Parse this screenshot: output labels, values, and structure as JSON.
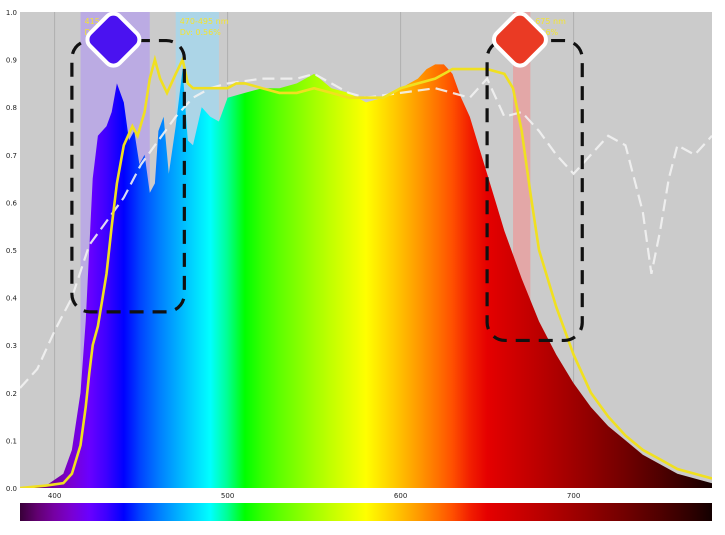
{
  "chart_data": {
    "type": "area",
    "title": "",
    "xlabel": "",
    "ylabel": "",
    "xlim": [
      380,
      780
    ],
    "ylim": [
      0,
      1.0
    ],
    "grid": true,
    "x_ticks": [
      400,
      500,
      600,
      700
    ],
    "y_ticks": [
      0,
      0.1,
      0.2,
      0.3,
      0.4,
      0.5,
      0.6,
      0.7,
      0.8,
      0.9,
      1.0
    ],
    "series": [
      {
        "style": "filled spectrum",
        "x": [
          380,
          395,
          405,
          410,
          415,
          418,
          420,
          422,
          425,
          430,
          433,
          436,
          440,
          443,
          446,
          449,
          452,
          455,
          458,
          460,
          463,
          466,
          470,
          474,
          477,
          480,
          485,
          490,
          495,
          500,
          510,
          520,
          530,
          540,
          550,
          560,
          570,
          580,
          590,
          600,
          610,
          615,
          620,
          625,
          630,
          635,
          640,
          645,
          650,
          655,
          660,
          670,
          680,
          690,
          700,
          710,
          720,
          730,
          740,
          750,
          760,
          770,
          780
        ],
        "values": [
          0.0,
          0.005,
          0.03,
          0.08,
          0.2,
          0.35,
          0.5,
          0.65,
          0.74,
          0.76,
          0.79,
          0.85,
          0.81,
          0.73,
          0.75,
          0.68,
          0.7,
          0.62,
          0.64,
          0.75,
          0.78,
          0.66,
          0.76,
          0.88,
          0.73,
          0.72,
          0.8,
          0.78,
          0.77,
          0.82,
          0.83,
          0.84,
          0.84,
          0.85,
          0.87,
          0.84,
          0.83,
          0.81,
          0.82,
          0.84,
          0.86,
          0.88,
          0.89,
          0.89,
          0.87,
          0.82,
          0.78,
          0.72,
          0.66,
          0.6,
          0.54,
          0.44,
          0.35,
          0.28,
          0.22,
          0.17,
          0.13,
          0.1,
          0.07,
          0.05,
          0.03,
          0.02,
          0.01
        ]
      },
      {
        "style": "yellow line",
        "color": "#f0e020",
        "x": [
          380,
          395,
          405,
          410,
          415,
          418,
          420,
          422,
          425,
          430,
          433,
          436,
          440,
          445,
          448,
          452,
          455,
          458,
          461,
          465,
          470,
          474,
          477,
          480,
          485,
          490,
          495,
          500,
          505,
          510,
          520,
          530,
          540,
          550,
          560,
          570,
          575,
          580,
          590,
          600,
          610,
          620,
          625,
          630,
          640,
          650,
          660,
          665,
          670,
          675,
          680,
          690,
          700,
          710,
          720,
          730,
          740,
          750,
          760,
          770,
          780
        ],
        "values": [
          0.0,
          0.005,
          0.01,
          0.03,
          0.09,
          0.17,
          0.24,
          0.3,
          0.34,
          0.45,
          0.55,
          0.64,
          0.72,
          0.76,
          0.74,
          0.79,
          0.86,
          0.9,
          0.86,
          0.83,
          0.87,
          0.9,
          0.85,
          0.84,
          0.84,
          0.84,
          0.84,
          0.84,
          0.85,
          0.85,
          0.84,
          0.83,
          0.83,
          0.84,
          0.83,
          0.82,
          0.82,
          0.82,
          0.82,
          0.84,
          0.85,
          0.86,
          0.87,
          0.88,
          0.88,
          0.88,
          0.87,
          0.84,
          0.75,
          0.62,
          0.5,
          0.38,
          0.28,
          0.2,
          0.15,
          0.11,
          0.08,
          0.06,
          0.04,
          0.03,
          0.02
        ]
      },
      {
        "style": "white dashed line",
        "color": "#f2f2f2",
        "x": [
          380,
          390,
          400,
          410,
          420,
          430,
          440,
          450,
          460,
          470,
          480,
          490,
          500,
          520,
          540,
          550,
          560,
          570,
          580,
          600,
          620,
          640,
          650,
          660,
          670,
          680,
          690,
          700,
          710,
          720,
          730,
          740,
          745,
          750,
          755,
          760,
          770,
          780
        ],
        "values": [
          0.21,
          0.25,
          0.33,
          0.4,
          0.51,
          0.56,
          0.61,
          0.68,
          0.73,
          0.78,
          0.82,
          0.84,
          0.85,
          0.86,
          0.86,
          0.87,
          0.85,
          0.83,
          0.82,
          0.83,
          0.84,
          0.82,
          0.86,
          0.78,
          0.79,
          0.75,
          0.7,
          0.66,
          0.7,
          0.74,
          0.72,
          0.58,
          0.45,
          0.54,
          0.65,
          0.72,
          0.7,
          0.74
        ]
      }
    ],
    "highlight_bands": [
      {
        "x": [
          415,
          455
        ],
        "color": "#b9a7e6",
        "label_line1": "415-455",
        "label_line2": "Dv:"
      },
      {
        "x": [
          470,
          495
        ],
        "color": "#a9d6ea",
        "label_line1": "470-495 nm",
        "label_line2": "Dv: 0.56%"
      },
      {
        "x": [
          665,
          675
        ],
        "color": "#e5a3a3",
        "label_line1": "665-675 nm",
        "label_line2": "Dv: 0.56%"
      }
    ],
    "markers": [
      {
        "shape": "diamond",
        "color": "#4a12f0",
        "x": 434,
        "y": 0.942
      },
      {
        "shape": "diamond",
        "color": "#ea3a24",
        "x": 669,
        "y": 0.942
      }
    ],
    "dashed_boxes": [
      {
        "x": [
          410,
          475
        ],
        "y": [
          0.37,
          0.94
        ]
      },
      {
        "x": [
          650,
          705
        ],
        "y": [
          0.31,
          0.94
        ]
      }
    ],
    "colorbar": {
      "position": "bottom",
      "range": [
        380,
        780
      ]
    }
  }
}
